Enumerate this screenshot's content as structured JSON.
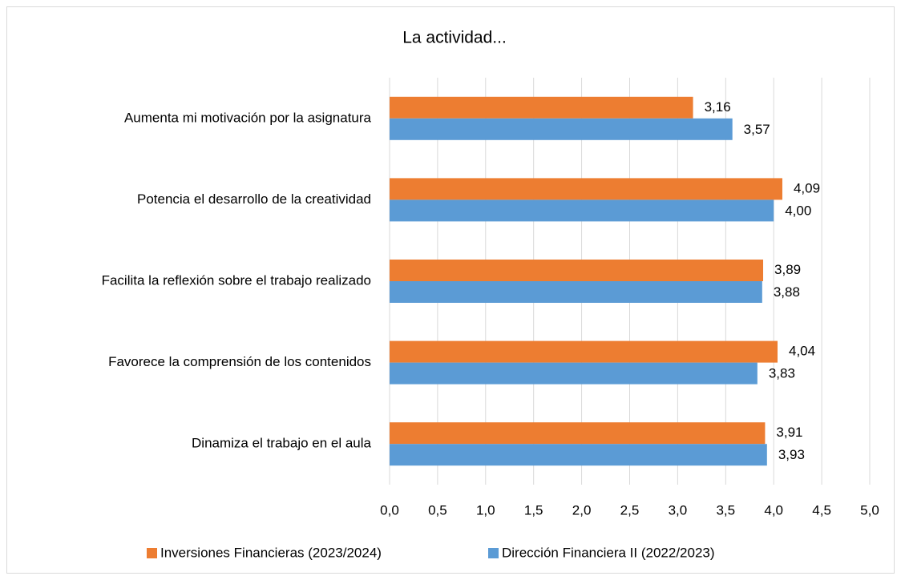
{
  "chart_data": {
    "type": "barh",
    "title": "La actividad...",
    "categories": [
      "Aumenta mi motivación por la asignatura",
      "Potencia el desarrollo de la creatividad",
      "Facilita la reflexión sobre el trabajo realizado",
      "Favorece la comprensión de los contenidos",
      "Dinamiza el trabajo en el aula"
    ],
    "series": [
      {
        "name": "Inversiones Financieras (2023/2024)",
        "color": "#ED7D31",
        "values": [
          3.16,
          4.09,
          3.89,
          4.04,
          3.91
        ],
        "value_labels": [
          "3,16",
          "4,09",
          "3,89",
          "4,04",
          "3,91"
        ]
      },
      {
        "name": "Dirección Financiera II (2022/2023)",
        "color": "#5B9BD5",
        "values": [
          3.57,
          4.0,
          3.88,
          3.83,
          3.93
        ],
        "value_labels": [
          "3,57",
          "4,00",
          "3,88",
          "3,83",
          "3,93"
        ]
      }
    ],
    "xlim": [
      0,
      5
    ],
    "xticks": [
      {
        "value": 0,
        "label": "0,0"
      },
      {
        "value": 0.5,
        "label": "0,5"
      },
      {
        "value": 1,
        "label": "1,0"
      },
      {
        "value": 1.5,
        "label": "1,5"
      },
      {
        "value": 2,
        "label": "2,0"
      },
      {
        "value": 2.5,
        "label": "2,5"
      },
      {
        "value": 3,
        "label": "3,0"
      },
      {
        "value": 3.5,
        "label": "3,5"
      },
      {
        "value": 4,
        "label": "4,0"
      },
      {
        "value": 4.5,
        "label": "4,5"
      },
      {
        "value": 5,
        "label": "5,0"
      }
    ],
    "grid": true,
    "legend": "bottom"
  }
}
